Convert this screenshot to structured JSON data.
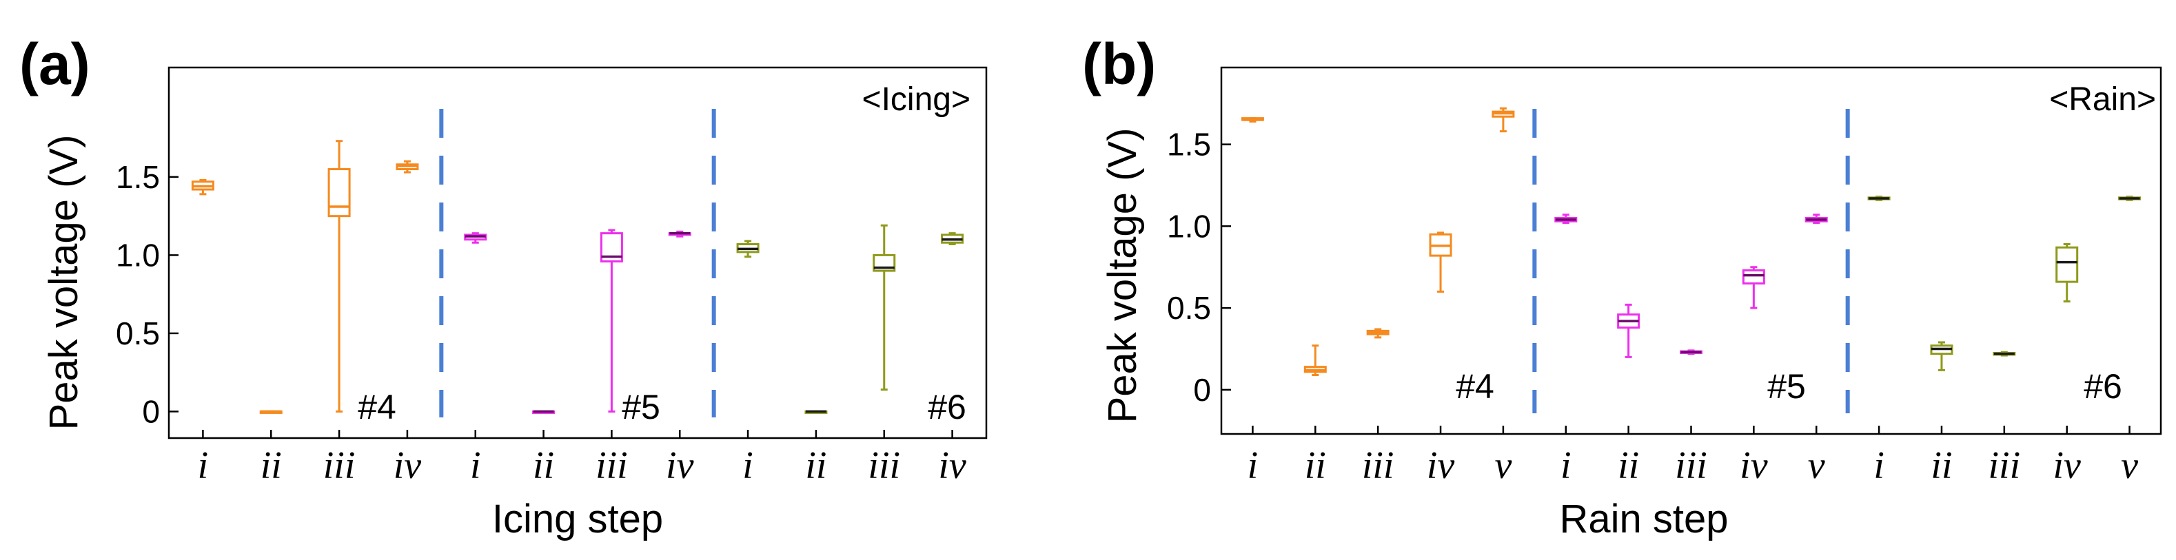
{
  "chart_data": [
    {
      "type": "box",
      "panel_label": "(a)",
      "xlabel": "Icing step",
      "ylabel": "Peak voltage (V)",
      "annotation": "<Icing>",
      "ylim": [
        -0.17,
        2.2
      ],
      "yticks": [
        0,
        0.5,
        1.0,
        1.5
      ],
      "ytick_labels": [
        "0",
        "0.5",
        "1.0",
        "1.5"
      ],
      "categories": [
        "i",
        "ii",
        "iii",
        "iv",
        "i",
        "ii",
        "iii",
        "iv",
        "i",
        "ii",
        "iii",
        "iv"
      ],
      "group_labels": [
        "#4",
        "#5",
        "#6"
      ],
      "separators_after": [
        4,
        8
      ],
      "separator_color": "#4a7fd4",
      "series": [
        {
          "group": "#4",
          "color": "#f58a1f",
          "median_color": "#f58a1f",
          "boxes": [
            {
              "min": 1.39,
              "q1": 1.42,
              "median": 1.44,
              "q3": 1.47,
              "max": 1.48
            },
            {
              "min": 0.0,
              "q1": 0.0,
              "median": 0.0,
              "q3": 0.0,
              "max": 0.0
            },
            {
              "min": 0.0,
              "q1": 1.25,
              "median": 1.31,
              "q3": 1.55,
              "max": 1.73
            },
            {
              "min": 1.53,
              "q1": 1.55,
              "median": 1.57,
              "q3": 1.58,
              "max": 1.6
            }
          ]
        },
        {
          "group": "#5",
          "color": "#ee2fee",
          "median_color": "#6a0a6a",
          "boxes": [
            {
              "min": 1.08,
              "q1": 1.1,
              "median": 1.12,
              "q3": 1.13,
              "max": 1.14
            },
            {
              "min": 0.0,
              "q1": 0.0,
              "median": 0.0,
              "q3": 0.0,
              "max": 0.0
            },
            {
              "min": 0.0,
              "q1": 0.96,
              "median": 0.99,
              "q3": 1.14,
              "max": 1.16
            },
            {
              "min": 1.12,
              "q1": 1.13,
              "median": 1.14,
              "q3": 1.14,
              "max": 1.15
            }
          ]
        },
        {
          "group": "#6",
          "color": "#8f9a1a",
          "median_color": "#1a1a1a",
          "boxes": [
            {
              "min": 0.99,
              "q1": 1.02,
              "median": 1.04,
              "q3": 1.07,
              "max": 1.09
            },
            {
              "min": 0.0,
              "q1": 0.0,
              "median": 0.0,
              "q3": 0.0,
              "max": 0.0
            },
            {
              "min": 0.14,
              "q1": 0.9,
              "median": 0.92,
              "q3": 1.0,
              "max": 1.19
            },
            {
              "min": 1.07,
              "q1": 1.08,
              "median": 1.1,
              "q3": 1.13,
              "max": 1.14
            }
          ]
        }
      ],
      "grid": false
    },
    {
      "type": "box",
      "panel_label": "(b)",
      "xlabel": "Rain step",
      "ylabel": "Peak voltage (V)",
      "annotation": "<Rain>",
      "ylim": [
        -0.27,
        1.97
      ],
      "yticks": [
        0,
        0.5,
        1.0,
        1.5
      ],
      "ytick_labels": [
        "0",
        "0.5",
        "1.0",
        "1.5"
      ],
      "categories": [
        "i",
        "ii",
        "iii",
        "iv",
        "v",
        "i",
        "ii",
        "iii",
        "iv",
        "v",
        "i",
        "ii",
        "iii",
        "iv",
        "v"
      ],
      "group_labels": [
        "#4",
        "#5",
        "#6"
      ],
      "separators_after": [
        5,
        10
      ],
      "separator_color": "#4a7fd4",
      "series": [
        {
          "group": "#4",
          "color": "#f58a1f",
          "median_color": "#f58a1f",
          "boxes": [
            {
              "min": 1.64,
              "q1": 1.65,
              "median": 1.65,
              "q3": 1.66,
              "max": 1.66
            },
            {
              "min": 0.09,
              "q1": 0.11,
              "median": 0.12,
              "q3": 0.14,
              "max": 0.27
            },
            {
              "min": 0.32,
              "q1": 0.34,
              "median": 0.35,
              "q3": 0.36,
              "max": 0.37
            },
            {
              "min": 0.6,
              "q1": 0.82,
              "median": 0.88,
              "q3": 0.95,
              "max": 0.96
            },
            {
              "min": 1.58,
              "q1": 1.67,
              "median": 1.69,
              "q3": 1.7,
              "max": 1.72
            }
          ]
        },
        {
          "group": "#5",
          "color": "#ee2fee",
          "median_color": "#6a0a6a",
          "boxes": [
            {
              "min": 1.02,
              "q1": 1.03,
              "median": 1.04,
              "q3": 1.05,
              "max": 1.07
            },
            {
              "min": 0.2,
              "q1": 0.38,
              "median": 0.42,
              "q3": 0.46,
              "max": 0.52
            },
            {
              "min": 0.22,
              "q1": 0.225,
              "median": 0.23,
              "q3": 0.235,
              "max": 0.24
            },
            {
              "min": 0.5,
              "q1": 0.65,
              "median": 0.7,
              "q3": 0.73,
              "max": 0.75
            },
            {
              "min": 1.02,
              "q1": 1.03,
              "median": 1.04,
              "q3": 1.05,
              "max": 1.07
            }
          ]
        },
        {
          "group": "#6",
          "color": "#8f9a1a",
          "median_color": "#1a1a1a",
          "boxes": [
            {
              "min": 1.16,
              "q1": 1.165,
              "median": 1.17,
              "q3": 1.175,
              "max": 1.18
            },
            {
              "min": 0.12,
              "q1": 0.22,
              "median": 0.25,
              "q3": 0.27,
              "max": 0.29
            },
            {
              "min": 0.21,
              "q1": 0.215,
              "median": 0.22,
              "q3": 0.225,
              "max": 0.23
            },
            {
              "min": 0.54,
              "q1": 0.66,
              "median": 0.78,
              "q3": 0.87,
              "max": 0.89
            },
            {
              "min": 1.16,
              "q1": 1.165,
              "median": 1.17,
              "q3": 1.175,
              "max": 1.18
            }
          ]
        }
      ],
      "grid": false
    }
  ]
}
